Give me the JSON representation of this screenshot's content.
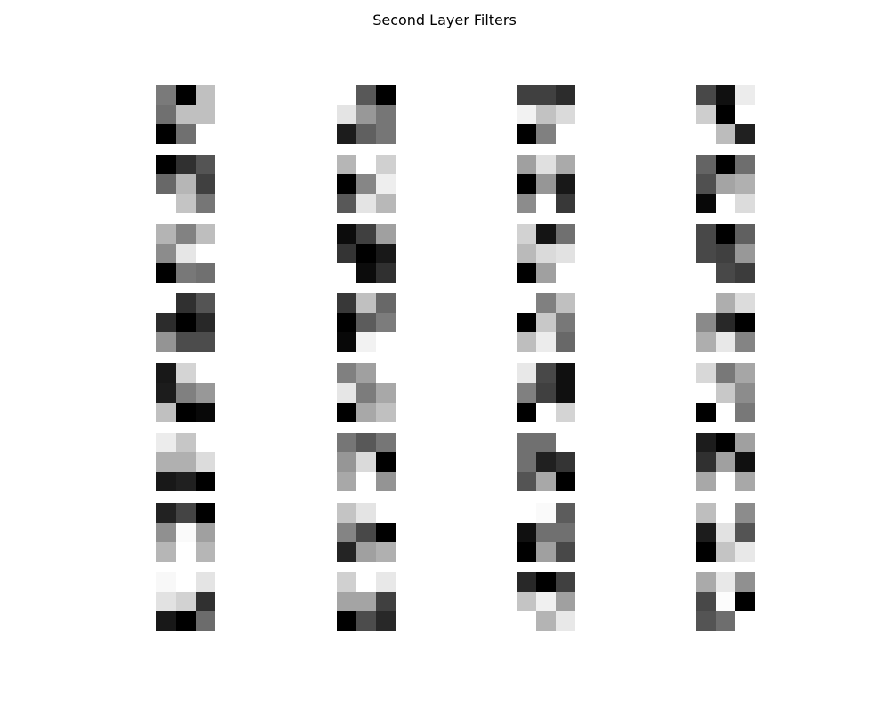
{
  "figure": {
    "title": "Second Layer Filters"
  },
  "chart_data": {
    "type": "heatmap",
    "title": "Second Layer Filters",
    "colormap": "gray",
    "axes_visible": false,
    "grid": false,
    "value_range": [
      0,
      255
    ],
    "layout": {
      "rows": 8,
      "cols": 4,
      "kernel_size": [
        3,
        3
      ]
    },
    "filters": [
      [
        [
          122,
          0,
          192
        ],
        [
          112,
          192,
          192
        ],
        [
          0,
          112,
          255
        ]
      ],
      [
        [
          255,
          88,
          0
        ],
        [
          228,
          152,
          118
        ],
        [
          28,
          96,
          118
        ]
      ],
      [
        [
          64,
          64,
          44
        ],
        [
          242,
          194,
          218
        ],
        [
          0,
          128,
          255
        ]
      ],
      [
        [
          72,
          16,
          236
        ],
        [
          206,
          0,
          255
        ],
        [
          255,
          188,
          32
        ]
      ],
      [
        [
          0,
          48,
          84
        ],
        [
          104,
          182,
          64
        ],
        [
          255,
          196,
          118
        ]
      ],
      [
        [
          182,
          255,
          208
        ],
        [
          0,
          134,
          238
        ],
        [
          88,
          228,
          184
        ]
      ],
      [
        [
          160,
          224,
          170
        ],
        [
          0,
          150,
          24
        ],
        [
          140,
          255,
          56
        ]
      ],
      [
        [
          100,
          0,
          110
        ],
        [
          80,
          164,
          176
        ],
        [
          8,
          255,
          220
        ]
      ],
      [
        [
          180,
          130,
          190
        ],
        [
          140,
          230,
          255
        ],
        [
          0,
          120,
          112
        ]
      ],
      [
        [
          12,
          64,
          160
        ],
        [
          52,
          0,
          24
        ],
        [
          255,
          12,
          48
        ]
      ],
      [
        [
          210,
          20,
          112
        ],
        [
          186,
          218,
          226
        ],
        [
          0,
          160,
          255
        ]
      ],
      [
        [
          72,
          0,
          96
        ],
        [
          72,
          64,
          152
        ],
        [
          255,
          72,
          60
        ]
      ],
      [
        [
          255,
          48,
          84
        ],
        [
          44,
          0,
          40
        ],
        [
          148,
          76,
          76
        ]
      ],
      [
        [
          56,
          192,
          104
        ],
        [
          0,
          92,
          124
        ],
        [
          8,
          242,
          255
        ]
      ],
      [
        [
          255,
          128,
          192
        ],
        [
          0,
          200,
          120
        ],
        [
          190,
          236,
          104
        ]
      ],
      [
        [
          255,
          174,
          220
        ],
        [
          138,
          40,
          0
        ],
        [
          174,
          232,
          132
        ]
      ],
      [
        [
          24,
          212,
          255
        ],
        [
          28,
          128,
          152
        ],
        [
          192,
          0,
          8
        ]
      ],
      [
        [
          128,
          160,
          255
        ],
        [
          230,
          124,
          168
        ],
        [
          0,
          168,
          192
        ]
      ],
      [
        [
          232,
          72,
          16
        ],
        [
          128,
          64,
          16
        ],
        [
          0,
          255,
          212
        ]
      ],
      [
        [
          216,
          120,
          166
        ],
        [
          255,
          200,
          140
        ],
        [
          0,
          255,
          120
        ]
      ],
      [
        [
          236,
          198,
          255
        ],
        [
          176,
          176,
          220
        ],
        [
          24,
          32,
          0
        ]
      ],
      [
        [
          118,
          88,
          118
        ],
        [
          150,
          218,
          0
        ],
        [
          168,
          255,
          148
        ]
      ],
      [
        [
          112,
          112,
          255
        ],
        [
          112,
          32,
          52
        ],
        [
          84,
          168,
          0
        ]
      ],
      [
        [
          28,
          0,
          160
        ],
        [
          48,
          160,
          16
        ],
        [
          168,
          255,
          168
        ]
      ],
      [
        [
          34,
          68,
          0
        ],
        [
          144,
          250,
          160
        ],
        [
          182,
          255,
          182
        ]
      ],
      [
        [
          196,
          228,
          255
        ],
        [
          132,
          72,
          0
        ],
        [
          36,
          160,
          176
        ]
      ],
      [
        [
          255,
          250,
          92
        ],
        [
          16,
          112,
          112
        ],
        [
          0,
          160,
          72
        ]
      ],
      [
        [
          190,
          255,
          140
        ],
        [
          28,
          226,
          84
        ],
        [
          0,
          196,
          232
        ]
      ],
      [
        [
          248,
          255,
          228
        ],
        [
          226,
          210,
          48
        ],
        [
          24,
          0,
          108
        ]
      ],
      [
        [
          208,
          255,
          232
        ],
        [
          164,
          164,
          64
        ],
        [
          0,
          76,
          40
        ]
      ],
      [
        [
          40,
          0,
          64
        ],
        [
          196,
          240,
          160
        ],
        [
          255,
          180,
          232
        ]
      ],
      [
        [
          170,
          232,
          144
        ],
        [
          72,
          252,
          0
        ],
        [
          84,
          110,
          255
        ]
      ]
    ]
  }
}
